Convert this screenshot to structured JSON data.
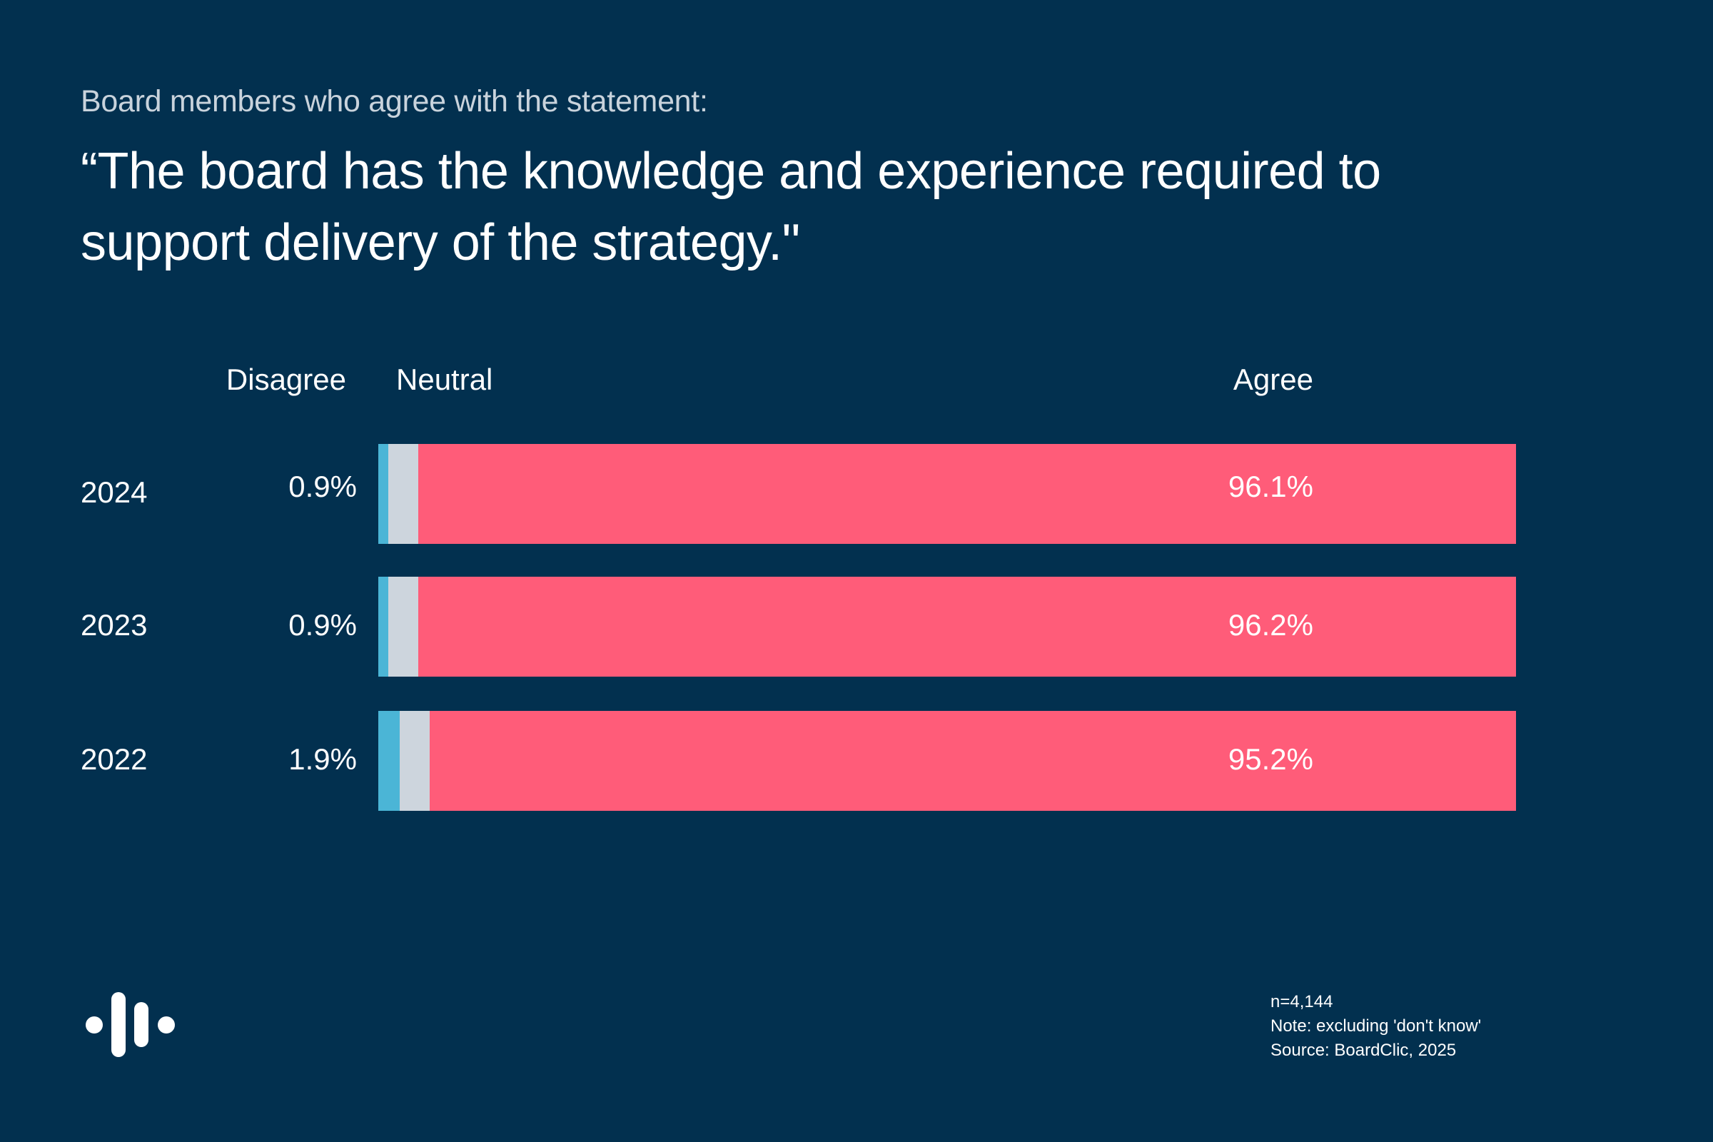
{
  "header": {
    "subtitle": "Board members who agree with the statement:",
    "title": "“The board has the knowledge and experience required to support delivery of the strategy.\""
  },
  "colors": {
    "background": "#02304f",
    "disagree": "#4bb5d6",
    "neutral": "#cdd5dd",
    "agree": "#ff5c79"
  },
  "chart_data": {
    "type": "bar",
    "orientation": "horizontal",
    "stacked": true,
    "title": "“The board has the knowledge and experience required to support delivery of the strategy.\"",
    "subtitle": "Board members who agree with the statement:",
    "categories": [
      "2024",
      "2023",
      "2022"
    ],
    "series": [
      {
        "name": "Disagree",
        "values": [
          0.9,
          0.9,
          1.9
        ],
        "labels": [
          "0.9%",
          "0.9%",
          "1.9%"
        ]
      },
      {
        "name": "Neutral",
        "values": [
          2.6,
          2.6,
          2.6
        ],
        "labels": [
          "2.6%",
          "2.6%",
          "2.6%"
        ]
      },
      {
        "name": "Agree",
        "values": [
          96.1,
          96.2,
          95.2
        ],
        "labels": [
          "96.1%",
          "96.2%",
          "95.2%"
        ]
      }
    ],
    "xlim": [
      0,
      100
    ],
    "unit": "%",
    "grid": false,
    "legend": "top (column headers)"
  },
  "footnote": {
    "n": "n=4,144",
    "note": "Note: excluding 'don't know'",
    "source": "Source: BoardClic, 2025"
  },
  "logo": {
    "icon": "boardclic-logo-icon"
  }
}
